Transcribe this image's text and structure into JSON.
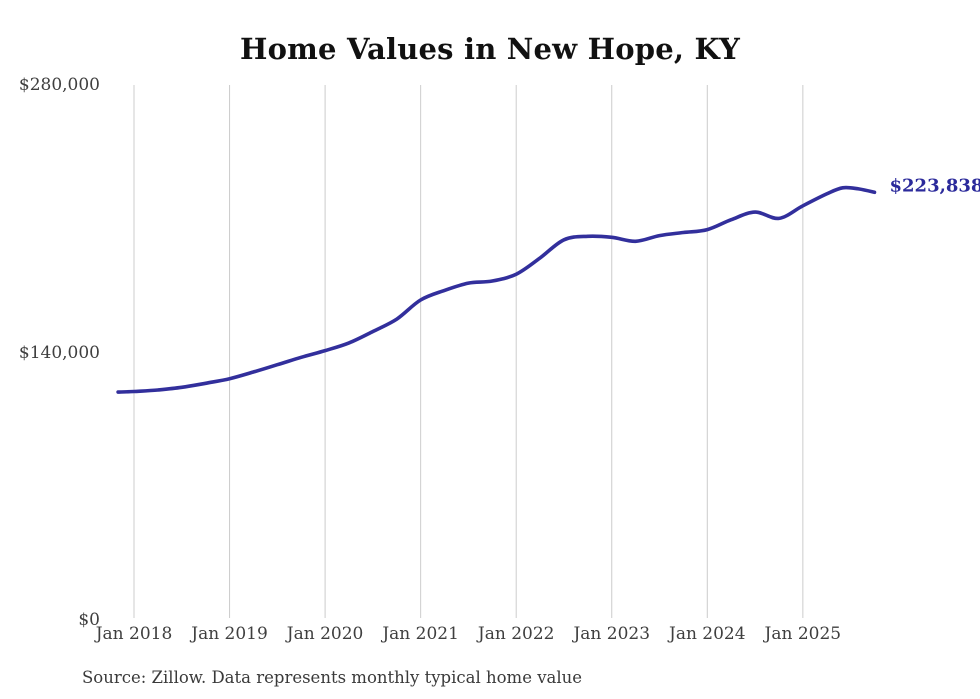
{
  "chart_data": {
    "type": "line",
    "title": "Home Values in New Hope, KY",
    "source_note": "Source: Zillow. Data represents monthly typical home value",
    "end_label": "$223,838",
    "latest_value": 223838,
    "ylim": [
      0,
      280000
    ],
    "xlim_years": [
      2017.75,
      2025.83
    ],
    "grid": "vertical-year-lines",
    "legend": "none",
    "y_ticks": [
      {
        "value": 0,
        "label": "$0"
      },
      {
        "value": 140000,
        "label": "$140,000"
      },
      {
        "value": 280000,
        "label": "$280,000"
      }
    ],
    "x_ticks": [
      {
        "year": 2018,
        "label": "Jan 2018"
      },
      {
        "year": 2019,
        "label": "Jan 2019"
      },
      {
        "year": 2020,
        "label": "Jan 2020"
      },
      {
        "year": 2021,
        "label": "Jan 2021"
      },
      {
        "year": 2022,
        "label": "Jan 2022"
      },
      {
        "year": 2023,
        "label": "Jan 2023"
      },
      {
        "year": 2024,
        "label": "Jan 2024"
      },
      {
        "year": 2025,
        "label": "Jan 2025"
      }
    ],
    "series": [
      {
        "name": "Monthly typical home value",
        "points": [
          {
            "date": "2017-11",
            "value": 119300
          },
          {
            "date": "2018-01",
            "value": 119600
          },
          {
            "date": "2018-04",
            "value": 120400
          },
          {
            "date": "2018-07",
            "value": 121800
          },
          {
            "date": "2018-10",
            "value": 123900
          },
          {
            "date": "2019-01",
            "value": 126300
          },
          {
            "date": "2019-04",
            "value": 129800
          },
          {
            "date": "2019-07",
            "value": 133600
          },
          {
            "date": "2019-10",
            "value": 137500
          },
          {
            "date": "2020-01",
            "value": 141000
          },
          {
            "date": "2020-04",
            "value": 145000
          },
          {
            "date": "2020-07",
            "value": 151000
          },
          {
            "date": "2020-10",
            "value": 157500
          },
          {
            "date": "2021-01",
            "value": 167500
          },
          {
            "date": "2021-04",
            "value": 172500
          },
          {
            "date": "2021-07",
            "value": 176300
          },
          {
            "date": "2021-10",
            "value": 177400
          },
          {
            "date": "2022-01",
            "value": 181000
          },
          {
            "date": "2022-04",
            "value": 189500
          },
          {
            "date": "2022-07",
            "value": 199000
          },
          {
            "date": "2022-10",
            "value": 200800
          },
          {
            "date": "2023-01",
            "value": 200300
          },
          {
            "date": "2023-04",
            "value": 198200
          },
          {
            "date": "2023-07",
            "value": 201200
          },
          {
            "date": "2023-10",
            "value": 202800
          },
          {
            "date": "2024-01",
            "value": 204300
          },
          {
            "date": "2024-04",
            "value": 209500
          },
          {
            "date": "2024-07",
            "value": 213500
          },
          {
            "date": "2024-10",
            "value": 210200
          },
          {
            "date": "2025-01",
            "value": 216800
          },
          {
            "date": "2025-04",
            "value": 223000
          },
          {
            "date": "2025-06",
            "value": 226200
          },
          {
            "date": "2025-08",
            "value": 225600
          },
          {
            "date": "2025-10",
            "value": 223838
          }
        ]
      }
    ]
  },
  "colors": {
    "line": "#322f9c",
    "end_label": "#2b2a9b",
    "grid": "#cccccc",
    "axis_text": "#3f3f3f",
    "title_text": "#111111",
    "background": "#ffffff"
  }
}
